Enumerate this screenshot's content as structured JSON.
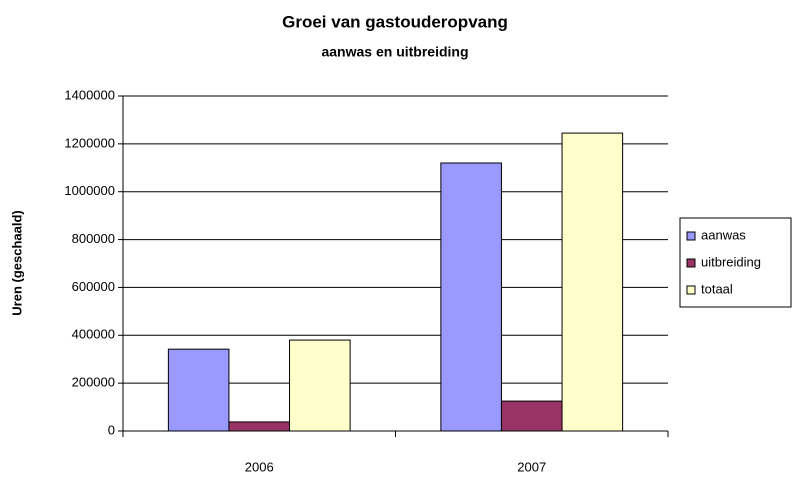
{
  "chart_data": {
    "type": "bar",
    "title": "Groei van gastouderopvang",
    "subtitle": "aanwas en uitbreiding",
    "y_label": "Uren (geschaald)",
    "categories": [
      "2006",
      "2007"
    ],
    "series": [
      {
        "name": "aanwas",
        "color": "#9999ff",
        "values": [
          342000,
          1120000
        ]
      },
      {
        "name": "uitbreiding",
        "color": "#993366",
        "values": [
          38000,
          125000
        ]
      },
      {
        "name": "totaal",
        "color": "#ffffcc",
        "values": [
          380000,
          1245000
        ]
      }
    ],
    "ylim": [
      0,
      1400000
    ],
    "yticks": [
      0,
      200000,
      400000,
      600000,
      800000,
      1000000,
      1200000,
      1400000
    ],
    "grid": true,
    "legend": "right"
  }
}
